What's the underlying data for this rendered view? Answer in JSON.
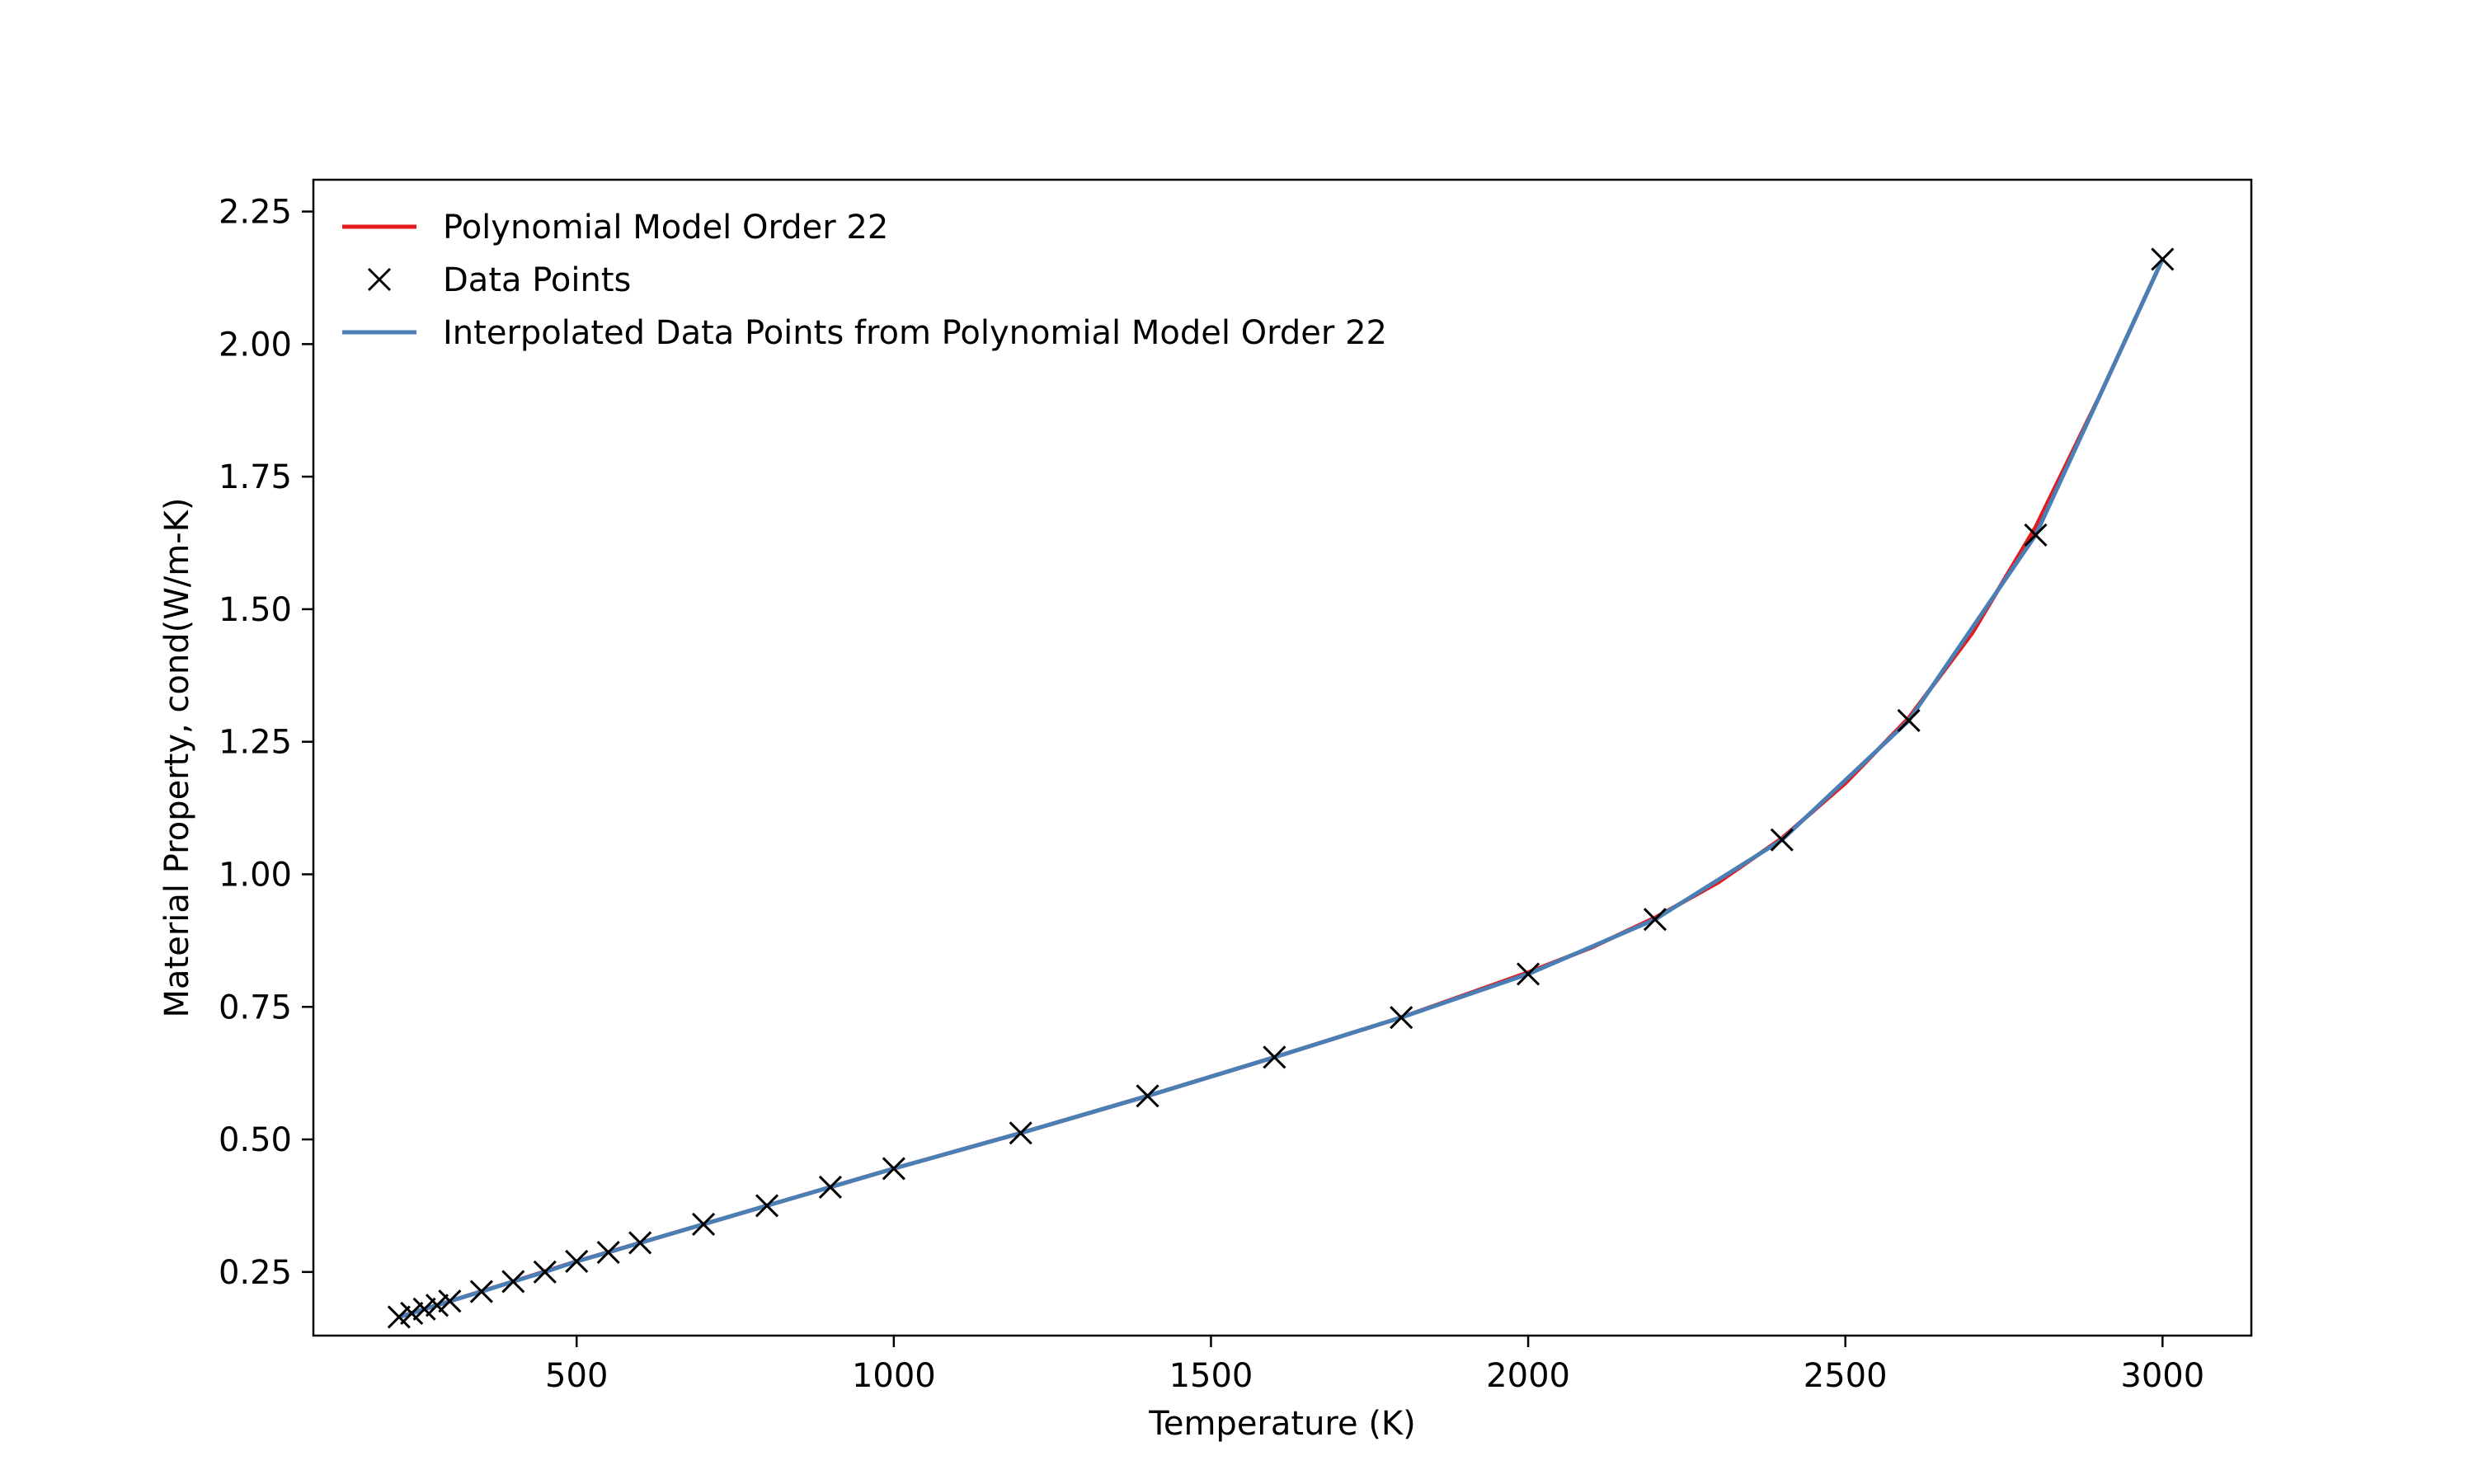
{
  "chart_data": {
    "type": "line",
    "title": "",
    "xlabel": "Temperature (K)",
    "ylabel": "Material Property, cond(W/m-K)",
    "xlim": [
      85,
      3140
    ],
    "ylim": [
      0.13,
      2.31
    ],
    "xticks": [
      500,
      1000,
      1500,
      2000,
      2500,
      3000
    ],
    "xtick_labels": [
      "500",
      "1000",
      "1500",
      "2000",
      "2500",
      "3000"
    ],
    "yticks": [
      0.25,
      0.5,
      0.75,
      1.0,
      1.25,
      1.5,
      1.75,
      2.0,
      2.25
    ],
    "ytick_labels": [
      "0.25",
      "0.50",
      "0.75",
      "1.00",
      "1.25",
      "1.50",
      "1.75",
      "2.00",
      "2.25"
    ],
    "grid": false,
    "legend_position": "top-left",
    "series": [
      {
        "name": "Polynomial Model Order 22",
        "kind": "line",
        "color": "#e41a1c",
        "x": [
          220,
          300,
          400,
          500,
          600,
          700,
          800,
          900,
          1000,
          1200,
          1400,
          1600,
          1800,
          2000,
          2100,
          2200,
          2300,
          2400,
          2500,
          2600,
          2700,
          2800,
          2900,
          3000
        ],
        "y": [
          0.165,
          0.195,
          0.232,
          0.27,
          0.305,
          0.34,
          0.375,
          0.41,
          0.445,
          0.512,
          0.582,
          0.655,
          0.73,
          0.815,
          0.862,
          0.918,
          0.985,
          1.068,
          1.172,
          1.295,
          1.455,
          1.655,
          1.9,
          2.16
        ]
      },
      {
        "name": "Data Points",
        "kind": "marker",
        "color": "#000000",
        "x": [
          220,
          240,
          260,
          280,
          300,
          350,
          400,
          450,
          500,
          550,
          600,
          700,
          800,
          900,
          1000,
          1200,
          1400,
          1600,
          1800,
          2000,
          2200,
          2400,
          2600,
          2800,
          3000
        ],
        "y": [
          0.165,
          0.172,
          0.18,
          0.187,
          0.195,
          0.213,
          0.232,
          0.25,
          0.27,
          0.287,
          0.305,
          0.34,
          0.375,
          0.41,
          0.445,
          0.512,
          0.582,
          0.655,
          0.73,
          0.812,
          0.915,
          1.065,
          1.29,
          1.64,
          2.16
        ]
      },
      {
        "name": "Interpolated Data Points from Polynomial Model Order 22",
        "kind": "line",
        "color": "#4a7fb5",
        "x": [
          220,
          240,
          260,
          280,
          300,
          350,
          400,
          450,
          500,
          550,
          600,
          700,
          800,
          900,
          1000,
          1200,
          1400,
          1600,
          1800,
          2000,
          2200,
          2400,
          2600,
          2800,
          3000
        ],
        "y": [
          0.165,
          0.172,
          0.18,
          0.187,
          0.195,
          0.213,
          0.232,
          0.25,
          0.27,
          0.287,
          0.305,
          0.34,
          0.375,
          0.41,
          0.445,
          0.512,
          0.582,
          0.655,
          0.73,
          0.812,
          0.915,
          1.065,
          1.29,
          1.64,
          2.16
        ]
      }
    ]
  }
}
